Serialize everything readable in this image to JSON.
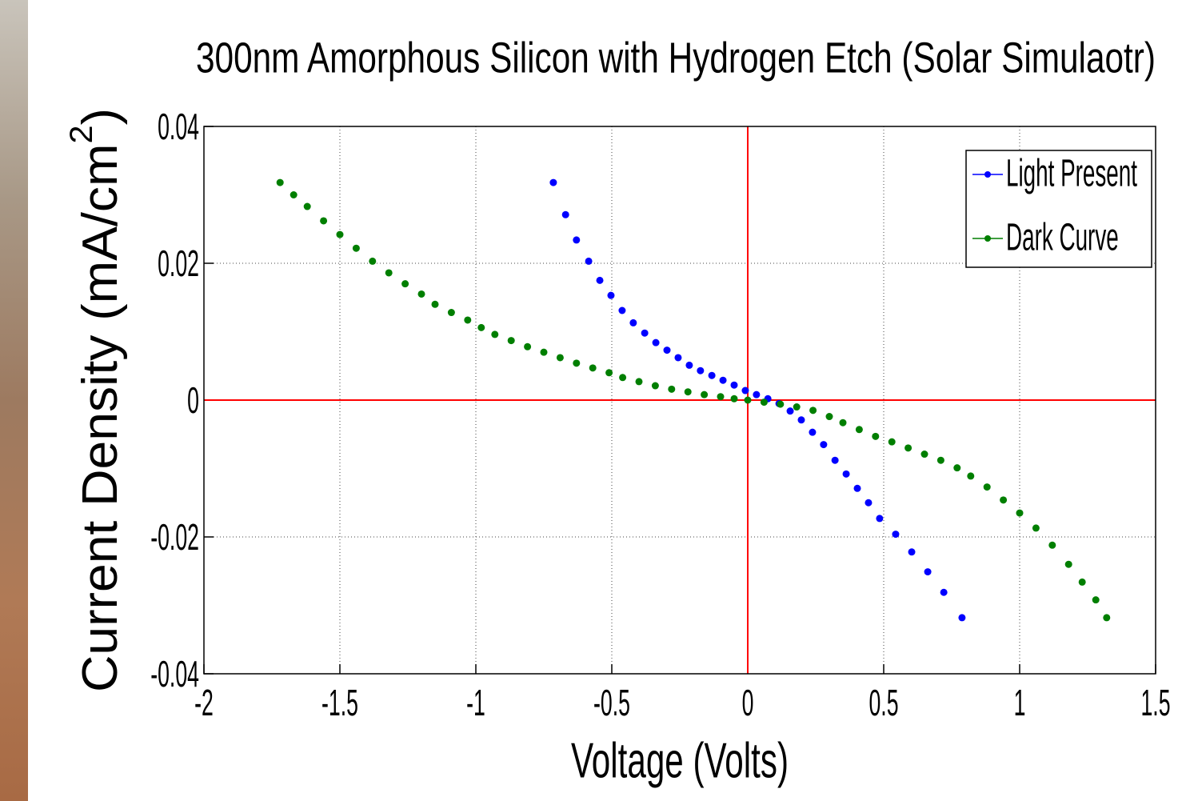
{
  "chart_data": {
    "type": "scatter",
    "title": "300nm Amorphous Silicon with Hydrogen Etch (Solar Simulaotr)",
    "xlabel": "Voltage (Volts)",
    "ylabel": "Current Density (mA/cm",
    "ylabel_superscript": "2",
    "ylabel_end": ")",
    "xlim": [
      -2,
      1.5
    ],
    "ylim": [
      -0.04,
      0.04
    ],
    "xticks": [
      -2,
      -1.5,
      -1,
      -0.5,
      0,
      0.5,
      1,
      1.5
    ],
    "yticks": [
      -0.04,
      -0.02,
      0,
      0.02,
      0.04
    ],
    "grid": true,
    "hlines": [
      0
    ],
    "vlines": [
      0
    ],
    "ref_line_color": "#ff0000",
    "legend": "upper right",
    "series": [
      {
        "name": "Light Present",
        "color": "#0000ff",
        "x": [
          -0.715,
          -0.67,
          -0.63,
          -0.585,
          -0.544,
          -0.503,
          -0.462,
          -0.421,
          -0.379,
          -0.338,
          -0.297,
          -0.256,
          -0.215,
          -0.174,
          -0.132,
          -0.091,
          -0.05,
          -0.009,
          0.032,
          0.074,
          0.115,
          0.156,
          0.197,
          0.238,
          0.279,
          0.321,
          0.362,
          0.403,
          0.444,
          0.485,
          0.544,
          0.603,
          0.662,
          0.721,
          0.788
        ],
        "values": [
          0.0318,
          0.0271,
          0.0234,
          0.0203,
          0.0175,
          0.0153,
          0.0131,
          0.0113,
          0.0098,
          0.0084,
          0.0073,
          0.0062,
          0.0051,
          0.0043,
          0.0036,
          0.0029,
          0.0022,
          0.0014,
          0.0008,
          0.0002,
          -0.0005,
          -0.0016,
          -0.0029,
          -0.0047,
          -0.0065,
          -0.0088,
          -0.0108,
          -0.0129,
          -0.015,
          -0.0173,
          -0.0196,
          -0.0222,
          -0.0251,
          -0.0281,
          -0.0318
        ]
      },
      {
        "name": "Dark Curve",
        "color": "#007f00",
        "x": [
          -1.72,
          -1.67,
          -1.62,
          -1.56,
          -1.5,
          -1.44,
          -1.38,
          -1.32,
          -1.26,
          -1.2,
          -1.15,
          -1.09,
          -1.03,
          -0.98,
          -0.93,
          -0.87,
          -0.81,
          -0.75,
          -0.69,
          -0.63,
          -0.57,
          -0.51,
          -0.46,
          -0.4,
          -0.34,
          -0.28,
          -0.22,
          -0.16,
          -0.1,
          -0.05,
          0,
          0.06,
          0.12,
          0.18,
          0.24,
          0.3,
          0.35,
          0.41,
          0.47,
          0.53,
          0.59,
          0.65,
          0.71,
          0.77,
          0.82,
          0.88,
          0.94,
          1.0,
          1.06,
          1.12,
          1.18,
          1.23,
          1.28,
          1.32
        ],
        "values": [
          0.0318,
          0.03,
          0.0283,
          0.0262,
          0.0242,
          0.0222,
          0.0203,
          0.0186,
          0.017,
          0.0155,
          0.014,
          0.0128,
          0.0117,
          0.0106,
          0.0096,
          0.0087,
          0.0078,
          0.007,
          0.0062,
          0.0054,
          0.0047,
          0.004,
          0.0033,
          0.0027,
          0.0021,
          0.0016,
          0.0012,
          0.0008,
          0.0005,
          0.0002,
          0,
          -0.0003,
          -0.0006,
          -0.001,
          -0.0015,
          -0.0024,
          -0.0033,
          -0.0043,
          -0.0053,
          -0.0061,
          -0.007,
          -0.0079,
          -0.0088,
          -0.0099,
          -0.0111,
          -0.0127,
          -0.0146,
          -0.0165,
          -0.0187,
          -0.0212,
          -0.024,
          -0.0266,
          -0.0292,
          -0.0318
        ]
      }
    ]
  }
}
